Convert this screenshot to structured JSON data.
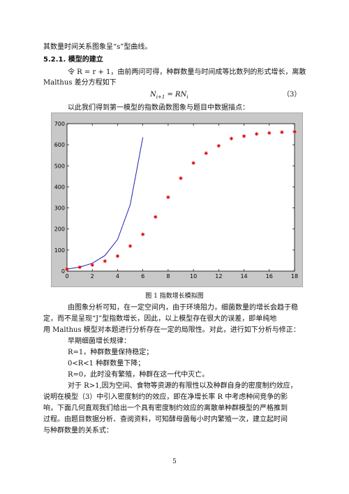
{
  "paragraphs": {
    "p0": "其数量时间关系图象呈“s”型曲线。",
    "section_heading": "5.2.1. 模型的建立",
    "p1_line1": "令 R = r + 1，由前两问可得，种群数量与时间成等比数列的形式增长，离散",
    "p1_line2": "Malthus 差分方程如下",
    "formula": "N",
    "formula_sub_left": "i+1",
    "formula_rhs": " = RN",
    "formula_sub_right": "i",
    "formula_number": "（3）",
    "p2": "以此我们得到第一模型的指数函数图象与题目中数据描点：",
    "caption": "图 1  指数增长模拟图",
    "p3_line1": "由图象分析可知，在一定空间内，由于环境阻力，细菌数量的增长会趋于稳",
    "p3_line2": "定，而不是呈现“J”型指数增长，因此，以上模型存在很大的误差，即单纯地",
    "p3_line3": "用 Malthus 模型对本题进行分析存在一定的局限性。对此，进行如下分析与修正：",
    "p4": "早期细菌增长规律：",
    "p5": "R=1，种群数量保持稳定；",
    "p6": "0<R<1 种群数量下降；",
    "p7": "R=0，此时没有繁殖，种群在这一代中灭亡。",
    "p8_line1": "对于 R>1,因为空间、食物等资源的有限性以及种群自身的密度制约效应，",
    "p8_line2": "说明在模型（3）中引入密度制约的效应，即在净增长率 R 中考虑种间竞争的影",
    "p8_line3": "响，下面几何直观我们给出一个具有密度制约效应的离散单种群模型的严格推到",
    "p8_line4": "过程。由题目数据分析、查阅资料，可知酵母菌每小时内繁殖一次，建立起时间",
    "p8_line5": "与种群数量的关系式：",
    "page_number": "5"
  },
  "chart_data": {
    "type": "scatter",
    "title": "",
    "xlabel": "",
    "ylabel": "",
    "xlim": [
      0,
      18
    ],
    "ylim": [
      0,
      700
    ],
    "x_ticks": [
      "0",
      "2",
      "4",
      "6",
      "8",
      "10",
      "12",
      "14",
      "16",
      "18"
    ],
    "y_ticks": [
      "0",
      "100",
      "200",
      "300",
      "400",
      "500",
      "600",
      "700"
    ],
    "grid": false,
    "series": [
      {
        "kind": "line",
        "color": "#1f1fb4",
        "x": [
          0,
          1,
          2,
          3,
          4,
          5,
          6
        ],
        "y": [
          9.6,
          19,
          37,
          74,
          150,
          315,
          635
        ]
      },
      {
        "kind": "scatter",
        "marker": "star",
        "color": "#e00000",
        "x": [
          0,
          1,
          2,
          3,
          4,
          5,
          6,
          7,
          8,
          9,
          10,
          11,
          12,
          13,
          14,
          15,
          16,
          17,
          18
        ],
        "y": [
          9.6,
          18.3,
          29,
          47.2,
          71.1,
          119.1,
          174.6,
          257.3,
          350.7,
          441,
          513.3,
          559.7,
          594.8,
          629.4,
          640.8,
          651.1,
          655.9,
          659.6,
          661.8
        ]
      }
    ]
  }
}
